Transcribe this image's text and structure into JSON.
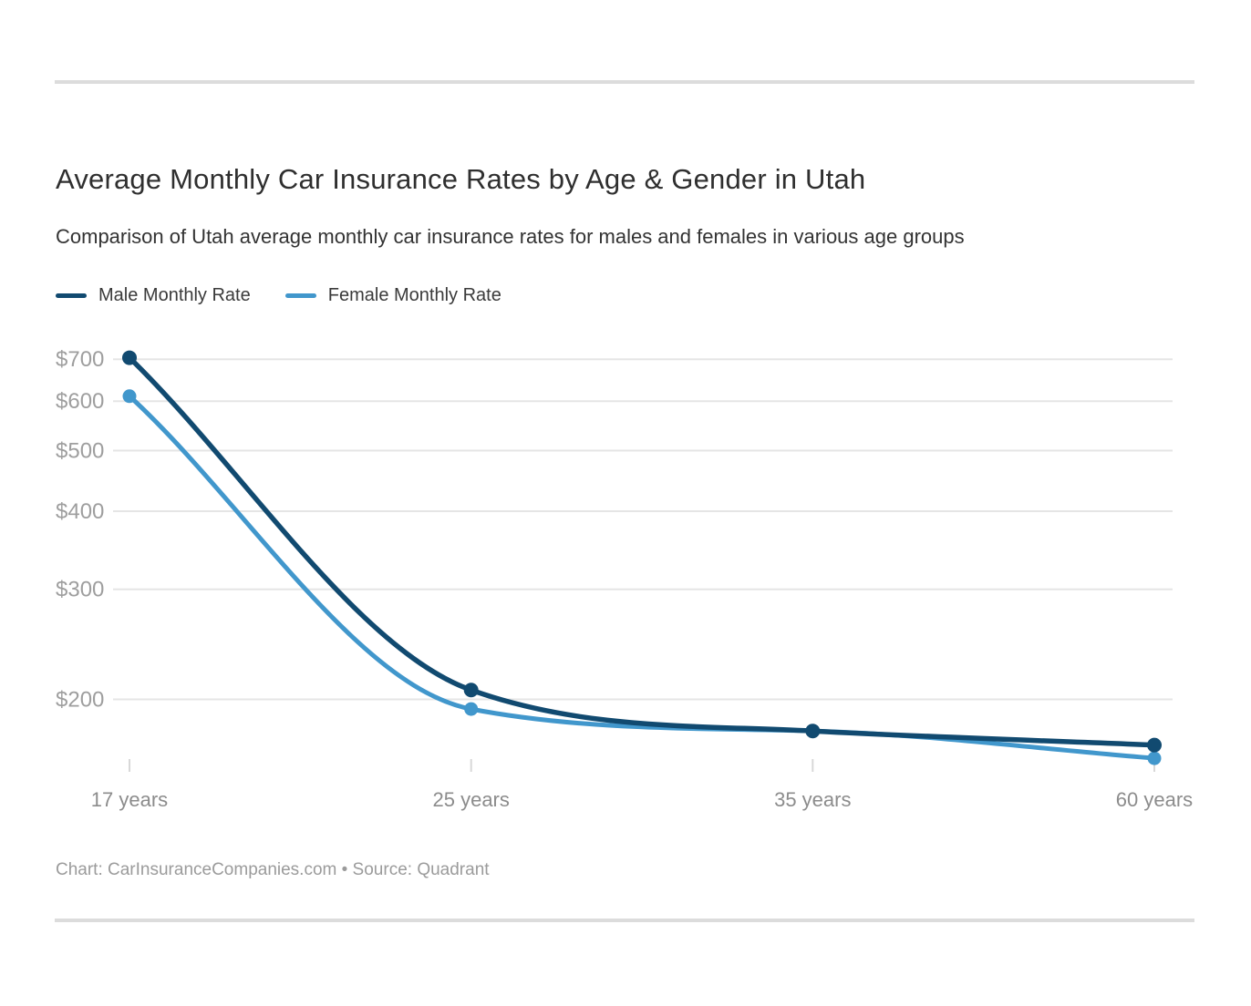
{
  "page": {
    "title": "Average Monthly Car Insurance Rates by Age & Gender in Utah",
    "subtitle": "Comparison of Utah average monthly car insurance rates for males and females in various age groups",
    "footer": "Chart: CarInsuranceCompanies.com • Source: Quadrant"
  },
  "colors": {
    "male_line": "#114a70",
    "female_line": "#4197cc",
    "gridline": "#e5e5e5",
    "tick_mark": "#d8d8d8",
    "axis_label": "#9e9e9e",
    "x_label": "#8c8c8c",
    "text": "#333333",
    "divider": "#dcdcdc",
    "footer_text": "#9b9b9b"
  },
  "chart_data": {
    "type": "line",
    "title": "Average Monthly Car Insurance Rates by Age & Gender in Utah",
    "subtitle": "Comparison of Utah average monthly car insurance rates for males and females in various age groups",
    "categories": [
      "17 years",
      "25 years",
      "35 years",
      "60 years"
    ],
    "series": [
      {
        "name": "Male Monthly Rate",
        "color": "#114a70",
        "values": [
          704,
          207,
          178,
          169
        ]
      },
      {
        "name": "Female Monthly Rate",
        "color": "#4197cc",
        "values": [
          611,
          193,
          178,
          161
        ]
      }
    ],
    "y_axis": {
      "scale": "log",
      "unit": "$ per month",
      "tick_values": [
        700,
        600,
        500,
        400,
        300,
        200
      ],
      "tick_labels": [
        "$700",
        "$600",
        "$500",
        "$400",
        "$300",
        "$200"
      ]
    },
    "x_axis": {
      "label": "",
      "type": "category"
    },
    "legend_position": "top-left",
    "grid": "horizontal-only",
    "markers": "filled-circles"
  }
}
